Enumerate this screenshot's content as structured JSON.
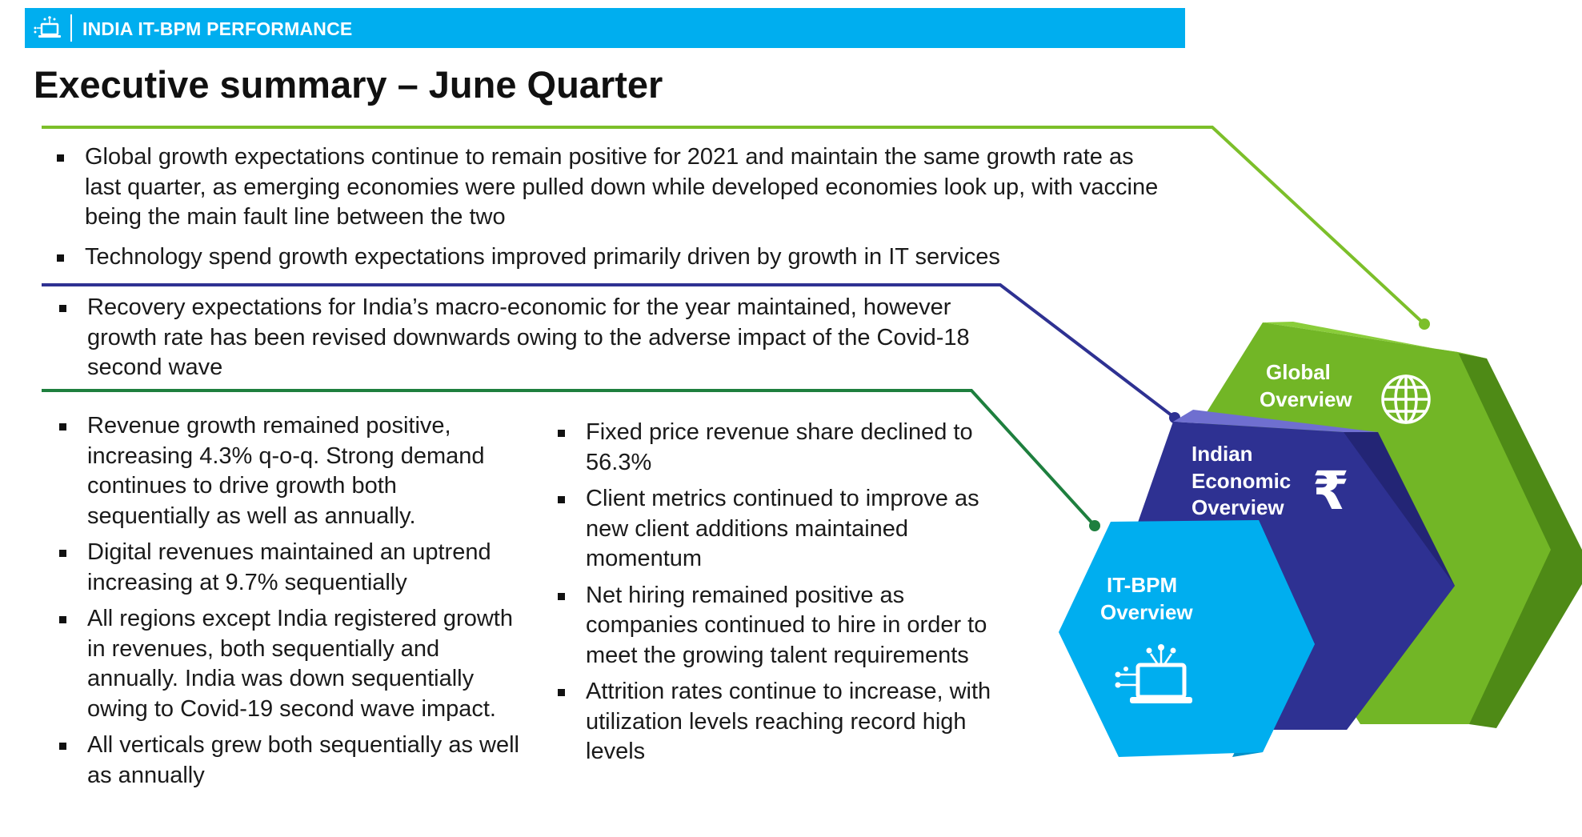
{
  "header": {
    "title": "INDIA IT-BPM PERFORMANCE",
    "background_color": "#00AEEF",
    "icon": "laptop-network-icon"
  },
  "page_title": "Executive summary – June Quarter",
  "sections": {
    "global": {
      "line_color": "#7CBF2A",
      "bullets": [
        "Global growth expectations continue to remain positive for 2021 and maintain the same growth rate as last quarter, as emerging economies were pulled down while developed economies look up, with vaccine being the main fault line between the two",
        "Technology spend growth expectations improved primarily driven by growth in IT services"
      ]
    },
    "india": {
      "line_color": "#2E3192",
      "bullets": [
        "Recovery expectations for India’s macro-economic for the year maintained, however growth rate has been revised downwards owing to the adverse impact of the Covid-18 second wave"
      ]
    },
    "itbpm": {
      "line_color": "#1E7F3E",
      "left_bullets": [
        "Revenue growth remained positive, increasing 4.3% q-o-q. Strong demand continues to drive growth both sequentially as well as annually.",
        "Digital revenues maintained an uptrend increasing at 9.7% sequentially",
        "All regions except India registered growth in revenues, both sequentially and annually. India was down sequentially owing to Covid-19 second wave impact.",
        "All verticals grew both sequentially as well as annually"
      ],
      "right_bullets": [
        "Fixed price revenue share declined to 56.3%",
        "Client metrics continued to improve as new client additions maintained momentum",
        "Net hiring remained positive as companies continued to hire in order to meet the growing talent requirements",
        "Attrition rates continue to increase, with utilization levels reaching record high levels"
      ]
    }
  },
  "diagram": {
    "global": {
      "label_line1": "Global",
      "label_line2": "Overview",
      "icon": "globe-icon",
      "color_front": "#72B626",
      "color_top": "#8ACD3A",
      "color_side": "#4E8A16"
    },
    "indian": {
      "label_line1": "Indian",
      "label_line2": "Economic",
      "label_line3": "Overview",
      "icon": "rupee-icon",
      "icon_glyph": "₹",
      "color_front": "#2E3192",
      "color_top": "#6F6FD0",
      "color_side": "#232575"
    },
    "itbpm": {
      "label_line1": "IT-BPM",
      "label_line2": "Overview",
      "icon": "laptop-network-icon",
      "color_front": "#00AEEF",
      "color_side": "#0090C8"
    }
  }
}
